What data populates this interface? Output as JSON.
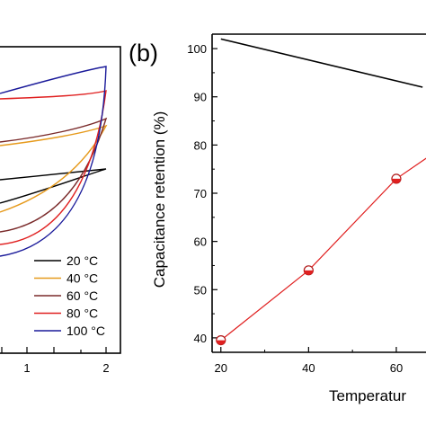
{
  "panel_a": {
    "chart_data": {
      "type": "line",
      "x_ticks": [
        "1",
        "2"
      ],
      "legend_position": "bottom-right",
      "series": [
        {
          "name": "20 °C",
          "color": "#000000"
        },
        {
          "name": "40 °C",
          "color": "#e69a1c"
        },
        {
          "name": "60 °C",
          "color": "#7a2a2a"
        },
        {
          "name": "80 °C",
          "color": "#e02020"
        },
        {
          "name": "100 °C",
          "color": "#1a1a9a"
        }
      ]
    }
  },
  "panel_b": {
    "label": "(b)",
    "chart_data": {
      "type": "line",
      "ylabel": "Capacitance retention (%)",
      "xlabel": "Temperatur",
      "xlim": [
        18,
        68
      ],
      "ylim": [
        37,
        103
      ],
      "x_ticks": [
        20,
        40,
        60
      ],
      "y_ticks": [
        40,
        50,
        60,
        70,
        80,
        90,
        100
      ],
      "series": [
        {
          "name": "",
          "color": "#000000",
          "marker": "none",
          "x": [
            20,
            66
          ],
          "y": [
            102,
            92
          ]
        },
        {
          "name": "",
          "color": "#e02020",
          "marker": "half-filled-circle",
          "x": [
            20,
            40,
            60,
            68
          ],
          "y": [
            39.5,
            54,
            73,
            78
          ]
        }
      ]
    }
  }
}
